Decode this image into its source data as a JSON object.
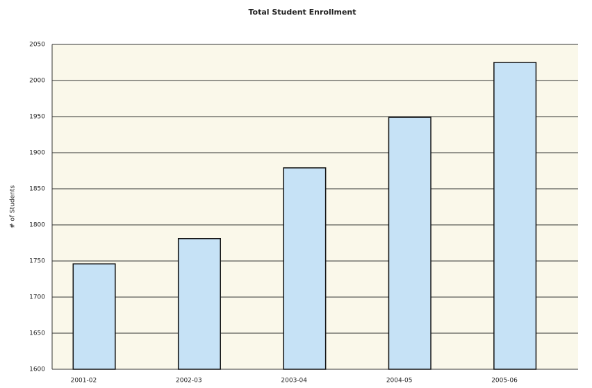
{
  "chart_data": {
    "type": "bar",
    "title": "Total Student Enrollment",
    "y_label": "# of Students",
    "categories": [
      "2001-02",
      "2002-03",
      "2003-04",
      "2004-05",
      "2005-06"
    ],
    "values": [
      1746,
      1781,
      1879,
      1949,
      2025
    ],
    "color": "#c6e2f6",
    "ylim": [
      1600,
      2050
    ],
    "yticks": [
      1600,
      1650,
      1700,
      1750,
      1800,
      1850,
      1900,
      1950,
      2000,
      2050
    ],
    "grid": true
  }
}
